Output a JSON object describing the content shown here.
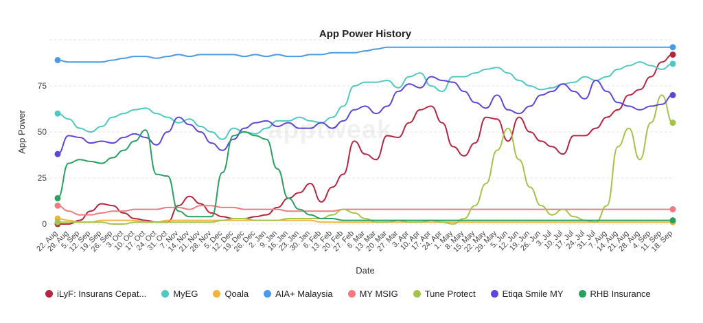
{
  "chart_data": {
    "type": "line",
    "title": "App Power History",
    "xlabel": "Date",
    "ylabel": "App Power",
    "ylim": [
      0,
      100
    ],
    "yticks": [
      0,
      25,
      50,
      75
    ],
    "grid": true,
    "legend_position": "bottom",
    "x": [
      "22. Aug",
      "29. Aug",
      "5. Sep",
      "12. Sep",
      "19. Sep",
      "26. Sep",
      "3. Oct",
      "10. Oct",
      "17. Oct",
      "24. Oct",
      "31. Oct",
      "7. Nov",
      "14. Nov",
      "21. Nov",
      "28. Nov",
      "5. Dec",
      "12. Dec",
      "19. Dec",
      "26. Dec",
      "2. Jan",
      "9. Jan",
      "16. Jan",
      "23. Jan",
      "30. Jan",
      "6. Feb",
      "13. Feb",
      "20. Feb",
      "27. Feb",
      "6. Mar",
      "13. Mar",
      "20. Mar",
      "27. Mar",
      "3. Apr",
      "10. Apr",
      "17. Apr",
      "24. Apr",
      "1. May",
      "8. May",
      "15. May",
      "22. May",
      "29. May",
      "5. Jun",
      "12. Jun",
      "19. Jun",
      "26. Jun",
      "3. Jul",
      "10. Jul",
      "17. Jul",
      "24. Jul",
      "31. Jul",
      "7. Aug",
      "14. Aug",
      "21. Aug",
      "28. Aug",
      "4. Sep",
      "11. Sep",
      "18. Sep"
    ],
    "series": [
      {
        "name": "iLyF: Insurans Cepat...",
        "color": "#b5253f",
        "values": [
          0,
          0,
          2,
          7,
          11,
          10,
          6,
          3,
          2,
          1,
          1,
          10,
          15,
          11,
          6,
          4,
          3,
          3,
          4,
          5,
          9,
          14,
          17,
          22,
          12,
          20,
          27,
          45,
          38,
          35,
          48,
          47,
          55,
          62,
          64,
          55,
          42,
          37,
          44,
          58,
          57,
          45,
          58,
          50,
          45,
          42,
          38,
          48,
          48,
          52,
          58,
          62,
          70,
          73,
          80,
          88,
          92
        ]
      },
      {
        "name": "MyEG",
        "color": "#4ec9c0",
        "values": [
          60,
          57,
          52,
          50,
          53,
          58,
          60,
          62,
          63,
          60,
          58,
          55,
          57,
          53,
          50,
          46,
          52,
          50,
          49,
          52,
          56,
          56,
          58,
          56,
          55,
          58,
          64,
          75,
          77,
          77,
          78,
          74,
          80,
          82,
          75,
          72,
          80,
          80,
          82,
          84,
          85,
          82,
          78,
          75,
          73,
          74,
          76,
          77,
          80,
          78,
          80,
          84,
          86,
          88,
          86,
          84,
          87
        ]
      },
      {
        "name": "Qoala",
        "color": "#f0b340",
        "values": [
          3,
          2,
          1,
          1,
          2,
          2,
          2,
          2,
          1,
          1,
          2,
          2,
          2,
          2,
          2,
          2,
          2,
          2,
          2,
          2,
          2,
          2,
          2,
          2,
          1,
          1,
          1,
          1,
          1,
          1,
          1,
          1,
          1,
          1,
          1,
          1,
          1,
          1,
          1,
          1,
          1,
          1,
          1,
          1,
          1,
          1,
          1,
          1,
          1,
          1,
          1,
          1,
          1,
          1,
          1,
          1,
          1
        ]
      },
      {
        "name": "AIA+ Malaysia",
        "color": "#4a9ae8",
        "values": [
          89,
          88,
          88,
          88,
          88,
          89,
          90,
          91,
          91,
          90,
          91,
          92,
          91,
          92,
          92,
          92,
          92,
          91,
          92,
          91,
          92,
          91,
          91,
          92,
          92,
          93,
          93,
          93,
          94,
          95,
          96,
          96,
          96,
          96,
          96,
          96,
          96,
          96,
          96,
          96,
          96,
          96,
          96,
          96,
          96,
          96,
          96,
          96,
          96,
          96,
          96,
          96,
          96,
          96,
          96,
          96,
          96
        ]
      },
      {
        "name": "MY MSIG",
        "color": "#f07a82",
        "values": [
          10,
          7,
          5,
          5,
          6,
          7,
          7,
          8,
          8,
          8,
          9,
          9,
          8,
          10,
          10,
          9,
          9,
          8,
          8,
          8,
          8,
          7,
          7,
          7,
          7,
          7,
          8,
          8,
          8,
          8,
          8,
          8,
          8,
          8,
          8,
          8,
          8,
          8,
          8,
          8,
          8,
          8,
          8,
          8,
          8,
          8,
          8,
          8,
          8,
          8,
          8,
          8,
          8,
          8,
          8,
          8,
          8
        ]
      },
      {
        "name": "Tune Protect",
        "color": "#a5c34a",
        "values": [
          1,
          1,
          1,
          1,
          1,
          0,
          0,
          1,
          1,
          1,
          1,
          1,
          1,
          1,
          1,
          2,
          3,
          3,
          2,
          2,
          2,
          3,
          3,
          3,
          3,
          5,
          8,
          6,
          3,
          1,
          1,
          2,
          1,
          1,
          2,
          1,
          0,
          3,
          10,
          22,
          40,
          52,
          35,
          20,
          10,
          5,
          8,
          4,
          2,
          1,
          10,
          42,
          52,
          35,
          55,
          70,
          55
        ]
      },
      {
        "name": "Etiqa Smile MY",
        "color": "#5b47d8",
        "values": [
          38,
          48,
          47,
          44,
          45,
          44,
          47,
          49,
          47,
          43,
          50,
          58,
          54,
          50,
          44,
          40,
          46,
          52,
          55,
          56,
          53,
          55,
          52,
          52,
          55,
          52,
          56,
          62,
          64,
          60,
          64,
          72,
          76,
          74,
          80,
          78,
          77,
          72,
          66,
          63,
          70,
          62,
          60,
          64,
          70,
          72,
          76,
          72,
          68,
          78,
          72,
          66,
          64,
          62,
          64,
          65,
          70
        ]
      },
      {
        "name": "RHB Insurance",
        "color": "#27a060",
        "values": [
          14,
          33,
          35,
          34,
          33,
          36,
          40,
          45,
          51,
          27,
          26,
          7,
          4,
          4,
          4,
          28,
          48,
          50,
          48,
          46,
          30,
          14,
          8,
          5,
          3,
          3,
          2,
          2,
          2,
          2,
          2,
          2,
          2,
          2,
          2,
          2,
          2,
          2,
          2,
          2,
          2,
          2,
          2,
          2,
          2,
          2,
          2,
          2,
          2,
          2,
          2,
          2,
          2,
          2,
          2,
          2,
          2
        ]
      }
    ]
  },
  "watermark": "apptweak"
}
